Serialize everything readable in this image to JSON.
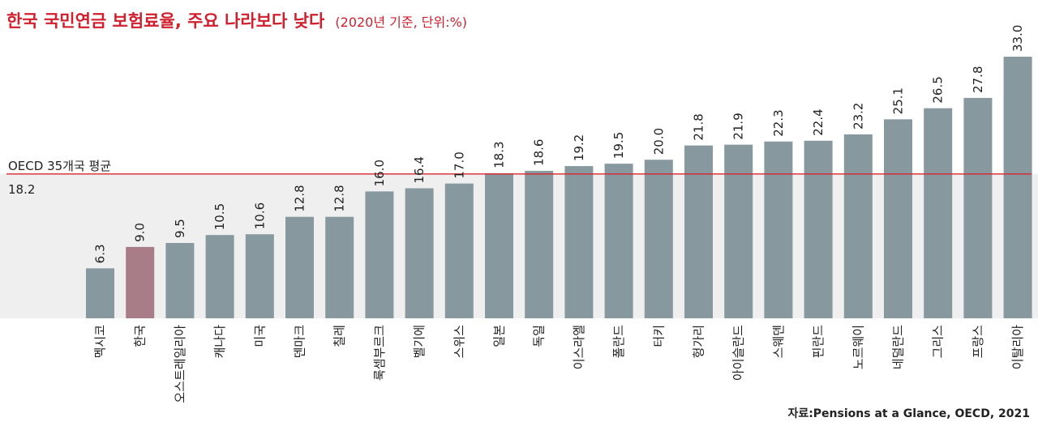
{
  "chart_data": {
    "type": "bar",
    "title": "한국 국민연금 보험료율, 주요 나라보다 낮다",
    "subtitle": "(2020년 기준, 단위:%)",
    "categories": [
      "멕시코",
      "한국",
      "오스트레일리아",
      "캐나다",
      "미국",
      "덴마크",
      "칠레",
      "룩셈부르크",
      "벨기에",
      "스위스",
      "일본",
      "독일",
      "이스라엘",
      "폴란드",
      "터키",
      "헝가리",
      "아이슬란드",
      "스웨덴",
      "핀란드",
      "노르웨이",
      "네덜란드",
      "그리스",
      "프랑스",
      "이탈리아"
    ],
    "values": [
      6.3,
      9.0,
      9.5,
      10.5,
      10.6,
      12.8,
      12.8,
      16.0,
      16.4,
      17.0,
      18.3,
      18.6,
      19.2,
      19.5,
      20.0,
      21.8,
      21.9,
      22.3,
      22.4,
      23.2,
      25.1,
      26.5,
      27.8,
      33.0
    ],
    "value_labels": [
      "6.3",
      "9.0",
      "9.5",
      "10.5",
      "10.6",
      "12.8",
      "12.8",
      "16.0",
      "16.4",
      "17.0",
      "18.3",
      "18.6",
      "19.2",
      "19.5",
      "20.0",
      "21.8",
      "21.9",
      "22.3",
      "22.4",
      "23.2",
      "25.1",
      "26.5",
      "27.8",
      "33.0"
    ],
    "highlight_category": "한국",
    "reference_line": {
      "label": "OECD 35개국 평균",
      "value": 18.2,
      "value_label": "18.2"
    },
    "ylim": [
      0,
      33
    ],
    "grid": false,
    "colors": {
      "bar": "#87989f",
      "highlight": "#a97d88",
      "reference": "#d9252d",
      "shade": "#efefef",
      "title": "#d0202e"
    },
    "source": "자료:Pensions at a Glance, OECD, 2021"
  }
}
